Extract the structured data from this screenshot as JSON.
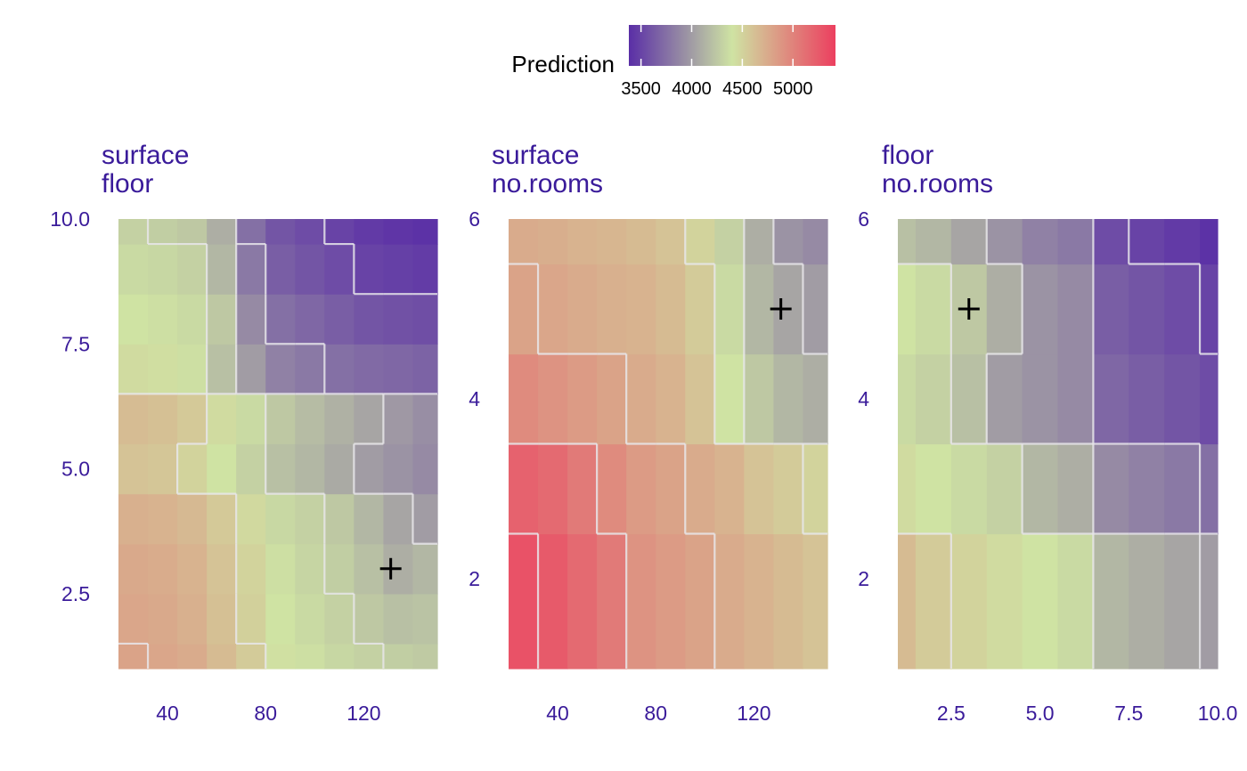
{
  "legend": {
    "title": "Prediction",
    "ticks": [
      3500,
      4000,
      4500,
      5000
    ],
    "range": [
      3380,
      5420
    ],
    "colors": [
      "#5a2ea6",
      "#cfe3a3",
      "#ec3f5f"
    ]
  },
  "chart_data": [
    {
      "type": "heatmap",
      "title": [
        "surface",
        "floor"
      ],
      "xlim": [
        20,
        150
      ],
      "ylim": [
        1,
        10
      ],
      "xticks": [
        40,
        80,
        120
      ],
      "yticks": [
        "2.5",
        "5.0",
        "7.5",
        "10.0"
      ],
      "grid": "off",
      "contour_color": "#e8e6ea",
      "marker": {
        "x": 131,
        "y": 3,
        "symbol": "+"
      },
      "x_breaks": [
        20,
        32,
        44,
        56,
        68,
        80,
        92,
        104,
        116,
        128,
        140,
        150
      ],
      "y_breaks": [
        1,
        1.5,
        2.5,
        3.5,
        4.5,
        5.5,
        6.5,
        7.5,
        8.5,
        9.5,
        10
      ],
      "z": [
        [
          4800,
          4780,
          4750,
          4650,
          4550,
          4420,
          4380,
          4330,
          4300,
          4280,
          4260
        ],
        [
          4780,
          4760,
          4720,
          4620,
          4520,
          4400,
          4350,
          4300,
          4250,
          4200,
          4220
        ],
        [
          4760,
          4740,
          4700,
          4600,
          4500,
          4380,
          4320,
          4280,
          4200,
          4100,
          4150
        ],
        [
          4720,
          4700,
          4660,
          4560,
          4460,
          4340,
          4300,
          4250,
          4150,
          4050,
          4000
        ],
        [
          4600,
          4580,
          4500,
          4400,
          4300,
          4200,
          4150,
          4080,
          4000,
          3950,
          3900
        ],
        [
          4640,
          4620,
          4560,
          4450,
          4350,
          4250,
          4180,
          4120,
          4050,
          3980,
          3920
        ],
        [
          4450,
          4430,
          4380,
          4200,
          4000,
          3850,
          3800,
          3750,
          3720,
          3700,
          3680
        ],
        [
          4400,
          4380,
          4350,
          4250,
          3900,
          3750,
          3700,
          3650,
          3600,
          3580,
          3560
        ],
        [
          4350,
          4330,
          4300,
          4150,
          3800,
          3650,
          3600,
          3550,
          3500,
          3480,
          3460
        ],
        [
          4300,
          4280,
          4250,
          4100,
          3750,
          3600,
          3550,
          3500,
          3450,
          3420,
          3400
        ]
      ]
    },
    {
      "type": "heatmap",
      "title": [
        "surface",
        "no.rooms"
      ],
      "xlim": [
        20,
        150
      ],
      "ylim": [
        1,
        6
      ],
      "xticks": [
        40,
        80,
        120
      ],
      "yticks": [
        "2",
        "4",
        "6"
      ],
      "grid": "off",
      "contour_color": "#e8e6ea",
      "marker": {
        "x": 131,
        "y": 5,
        "symbol": "+"
      },
      "x_breaks": [
        20,
        32,
        44,
        56,
        68,
        80,
        92,
        104,
        116,
        128,
        140,
        150
      ],
      "y_breaks": [
        1,
        2.5,
        3.5,
        4.5,
        5.5,
        6
      ],
      "z": [
        [
          5300,
          5250,
          5150,
          5050,
          4900,
          4850,
          4800,
          4750,
          4700,
          4650,
          4600
        ],
        [
          5200,
          5150,
          5050,
          4950,
          4850,
          4800,
          4750,
          4700,
          4600,
          4550,
          4500
        ],
        [
          4950,
          4900,
          4850,
          4800,
          4750,
          4700,
          4600,
          4400,
          4250,
          4150,
          4100
        ],
        [
          4800,
          4780,
          4750,
          4720,
          4700,
          4650,
          4550,
          4350,
          4150,
          4050,
          4000
        ],
        [
          4750,
          4730,
          4700,
          4680,
          4650,
          4600,
          4500,
          4300,
          4100,
          3950,
          3900
        ]
      ]
    },
    {
      "type": "heatmap",
      "title": [
        "floor",
        "no.rooms"
      ],
      "xlim": [
        1,
        10
      ],
      "ylim": [
        1,
        6
      ],
      "xticks": [
        "2.5",
        "5.0",
        "7.5",
        "10.0"
      ],
      "yticks": [
        "2",
        "4",
        "6"
      ],
      "grid": "off",
      "contour_color": "#e8e6ea",
      "marker": {
        "x": 3,
        "y": 5,
        "symbol": "+"
      },
      "x_breaks": [
        1,
        1.5,
        2.5,
        3.5,
        4.5,
        5.5,
        6.5,
        7.5,
        8.5,
        9.5,
        10
      ],
      "y_breaks": [
        1,
        2.5,
        3.5,
        4.5,
        5.5,
        6
      ],
      "z": [
        [
          4650,
          4550,
          4500,
          4450,
          4400,
          4350,
          4150,
          4100,
          4050,
          4000
        ],
        [
          4450,
          4400,
          4350,
          4300,
          4150,
          4100,
          3900,
          3850,
          3800,
          3750
        ],
        [
          4350,
          4300,
          4200,
          4000,
          3950,
          3900,
          3700,
          3650,
          3600,
          3550
        ],
        [
          4400,
          4350,
          4250,
          4100,
          3950,
          3900,
          3650,
          3600,
          3550,
          3500
        ],
        [
          4200,
          4150,
          4050,
          3950,
          3850,
          3800,
          3550,
          3500,
          3450,
          3400
        ]
      ]
    }
  ]
}
